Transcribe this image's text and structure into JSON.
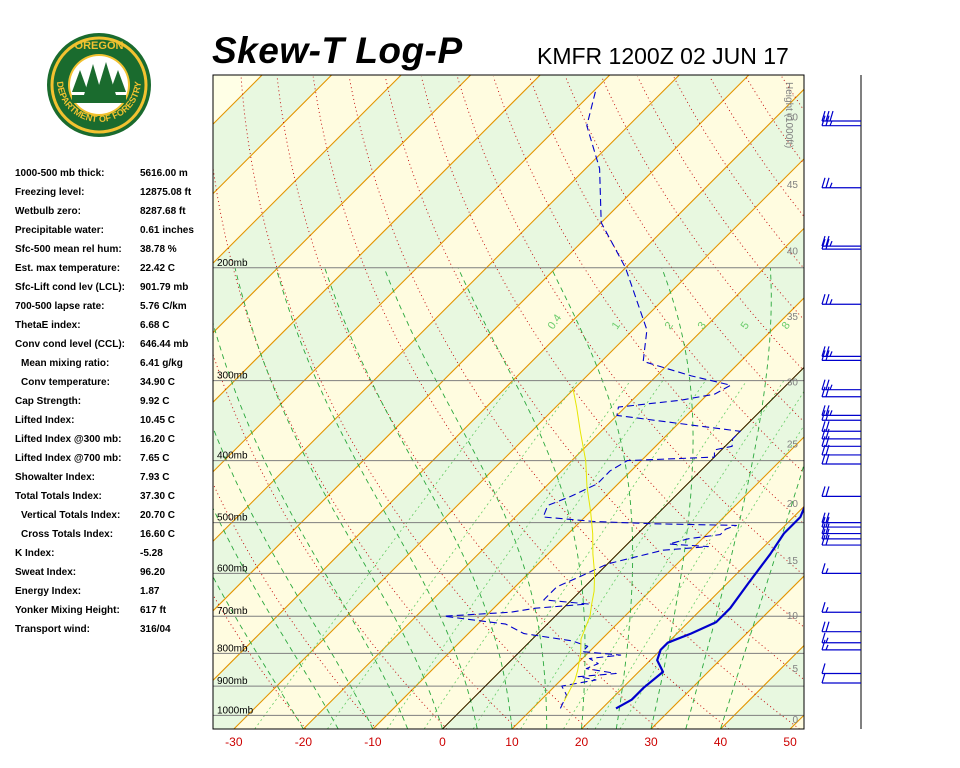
{
  "logo": {
    "top_text": "OREGON",
    "ring_text": "DEPARTMENT OF FORESTRY",
    "icon": "oregon-forestry-seal"
  },
  "header": {
    "title": "Skew-T Log-P",
    "station": "KMFR 1200Z 02 JUN 17"
  },
  "stats": [
    {
      "label": "1000-500 mb thick:",
      "value": "5616.00 m",
      "indent": false
    },
    {
      "label": "Freezing level:",
      "value": "12875.08 ft",
      "indent": false
    },
    {
      "label": "Wetbulb zero:",
      "value": "8287.68 ft",
      "indent": false
    },
    {
      "label": "Precipitable water:",
      "value": "0.61 inches",
      "indent": false
    },
    {
      "label": "Sfc-500 mean rel hum:",
      "value": "38.78 %",
      "indent": false
    },
    {
      "label": "Est. max temperature:",
      "value": "22.42 C",
      "indent": false
    },
    {
      "label": "Sfc-Lift cond lev (LCL):",
      "value": "901.79 mb",
      "indent": false
    },
    {
      "label": "700-500 lapse rate:",
      "value": "5.76 C/km",
      "indent": false
    },
    {
      "label": "ThetaE index:",
      "value": "6.68 C",
      "indent": false
    },
    {
      "label": "Conv cond level (CCL):",
      "value": "646.44 mb",
      "indent": false
    },
    {
      "label": "Mean mixing ratio:",
      "value": "6.41 g/kg",
      "indent": true
    },
    {
      "label": "Conv temperature:",
      "value": "34.90 C",
      "indent": true
    },
    {
      "label": "Cap Strength:",
      "value": "9.92 C",
      "indent": false
    },
    {
      "label": "Lifted Index:",
      "value": "10.45 C",
      "indent": false
    },
    {
      "label": "Lifted Index @300 mb:",
      "value": "16.20 C",
      "indent": false
    },
    {
      "label": "Lifted Index @700 mb:",
      "value": "7.65 C",
      "indent": false
    },
    {
      "label": "Showalter Index:",
      "value": "7.93 C",
      "indent": false
    },
    {
      "label": "Total Totals Index:",
      "value": "37.30 C",
      "indent": false
    },
    {
      "label": "Vertical Totals Index:",
      "value": "20.70 C",
      "indent": true
    },
    {
      "label": "Cross Totals Index:",
      "value": "16.60 C",
      "indent": true
    },
    {
      "label": "K Index:",
      "value": "-5.28",
      "indent": false
    },
    {
      "label": "Sweat Index:",
      "value": "96.20",
      "indent": false
    },
    {
      "label": "Energy Index:",
      "value": "1.87",
      "indent": false
    },
    {
      "label": "Yonker Mixing Height:",
      "value": "617 ft",
      "indent": false
    },
    {
      "label": "Transport wind:",
      "value": "316/04",
      "indent": false
    }
  ],
  "chart_data": {
    "type": "line",
    "x_axis": {
      "ticks": [
        -30,
        -20,
        -10,
        0,
        10,
        20,
        30,
        40,
        50
      ],
      "range": [
        -33,
        52
      ],
      "tick_color": "#cc0000"
    },
    "y_axis_pressure": {
      "scale": "log",
      "range_mb": [
        1050,
        100
      ],
      "labels": [
        {
          "p": 1000,
          "text": "1000mb"
        },
        {
          "p": 900,
          "text": "900mb"
        },
        {
          "p": 800,
          "text": "800mb"
        },
        {
          "p": 700,
          "text": "700mb"
        },
        {
          "p": 600,
          "text": "600mb"
        },
        {
          "p": 500,
          "text": "500mb"
        },
        {
          "p": 400,
          "text": "400mb"
        },
        {
          "p": 300,
          "text": "300mb"
        },
        {
          "p": 200,
          "text": "200mb"
        }
      ]
    },
    "height_axis": {
      "title": "Height (1000ft)",
      "labels": [
        {
          "p": 1013,
          "text": "0"
        },
        {
          "p": 843,
          "text": "5"
        },
        {
          "p": 697,
          "text": "10"
        },
        {
          "p": 572,
          "text": "15"
        },
        {
          "p": 466,
          "text": "20"
        },
        {
          "p": 376,
          "text": "25"
        },
        {
          "p": 301,
          "text": "30"
        },
        {
          "p": 238,
          "text": "35"
        },
        {
          "p": 188,
          "text": "40"
        },
        {
          "p": 148,
          "text": "45"
        },
        {
          "p": 116,
          "text": "50"
        }
      ]
    },
    "mixing_ratio_labels": [
      "0.4",
      "1",
      "2",
      "3",
      "5",
      "8"
    ],
    "series": [
      {
        "role": "temperature",
        "color": "#0000cc",
        "points": [
          [
            975,
            22
          ],
          [
            945,
            23
          ],
          [
            905,
            23
          ],
          [
            855,
            23.5
          ],
          [
            820,
            21
          ],
          [
            790,
            20
          ],
          [
            770,
            20
          ],
          [
            745,
            22
          ],
          [
            715,
            24
          ],
          [
            680,
            24
          ],
          [
            620,
            23
          ],
          [
            560,
            22
          ],
          [
            520,
            21
          ],
          [
            490,
            21
          ],
          [
            460,
            19.5
          ],
          [
            420,
            17.5
          ],
          [
            395,
            15.5
          ],
          [
            375,
            14
          ],
          [
            355,
            13
          ],
          [
            335,
            13
          ],
          [
            320,
            12
          ],
          [
            300,
            10
          ],
          [
            280,
            7
          ],
          [
            250,
            1
          ],
          [
            225,
            -5
          ],
          [
            200,
            -10
          ],
          [
            185,
            -15
          ],
          [
            170,
            -20
          ],
          [
            155,
            -24
          ],
          [
            140,
            -28
          ],
          [
            120,
            -34
          ],
          [
            105,
            -38
          ]
        ]
      },
      {
        "role": "dewpoint",
        "color": "#0000cc",
        "dashed": true,
        "points": [
          [
            975,
            14
          ],
          [
            930,
            13
          ],
          [
            900,
            11
          ],
          [
            880,
            15
          ],
          [
            870,
            12
          ],
          [
            860,
            17
          ],
          [
            845,
            12
          ],
          [
            830,
            13
          ],
          [
            815,
            11
          ],
          [
            805,
            15
          ],
          [
            795,
            9
          ],
          [
            780,
            9
          ],
          [
            765,
            6
          ],
          [
            745,
            -2
          ],
          [
            720,
            -6
          ],
          [
            700,
            -16
          ],
          [
            690,
            -7
          ],
          [
            680,
            -4
          ],
          [
            670,
            3
          ],
          [
            660,
            -4
          ],
          [
            630,
            -4
          ],
          [
            605,
            -2
          ],
          [
            580,
            0
          ],
          [
            552,
            6
          ],
          [
            545,
            12
          ],
          [
            540,
            6
          ],
          [
            530,
            8
          ],
          [
            522,
            12
          ],
          [
            512,
            12
          ],
          [
            505,
            13
          ],
          [
            502,
            1
          ],
          [
            498,
            -8
          ],
          [
            490,
            -16
          ],
          [
            470,
            -17
          ],
          [
            455,
            -15
          ],
          [
            435,
            -13
          ],
          [
            415,
            -13
          ],
          [
            400,
            -12
          ],
          [
            395,
            0
          ],
          [
            385,
            -1
          ],
          [
            380,
            1
          ],
          [
            370,
            0
          ],
          [
            360,
            0
          ],
          [
            348,
            -12
          ],
          [
            340,
            -20
          ],
          [
            330,
            -21
          ],
          [
            322,
            -13
          ],
          [
            315,
            -9
          ],
          [
            305,
            -8
          ],
          [
            295,
            -15
          ],
          [
            280,
            -24
          ],
          [
            250,
            -28
          ],
          [
            200,
            -40
          ],
          [
            170,
            -50
          ],
          [
            140,
            -58
          ],
          [
            120,
            -66
          ],
          [
            105,
            -70
          ]
        ]
      },
      {
        "role": "parcel",
        "color": "#e6e600",
        "points": [
          [
            950,
            13.5
          ],
          [
            902,
            12.5
          ],
          [
            880,
            12
          ],
          [
            850,
            11
          ],
          [
            800,
            9
          ],
          [
            760,
            7
          ],
          [
            730,
            6
          ],
          [
            700,
            5
          ],
          [
            670,
            3.5
          ],
          [
            640,
            2
          ],
          [
            600,
            -0.5
          ],
          [
            560,
            -3.5
          ],
          [
            520,
            -6.5
          ],
          [
            480,
            -10
          ],
          [
            440,
            -14
          ],
          [
            400,
            -18
          ],
          [
            360,
            -23
          ],
          [
            330,
            -27
          ],
          [
            310,
            -30
          ]
        ]
      }
    ],
    "wind_barbs": [
      {
        "p": 118,
        "speed": 30
      },
      {
        "p": 120,
        "speed": 25
      },
      {
        "p": 150,
        "speed": 25
      },
      {
        "p": 185,
        "speed": 25
      },
      {
        "p": 187,
        "speed": 20
      },
      {
        "p": 228,
        "speed": 25
      },
      {
        "p": 275,
        "speed": 25
      },
      {
        "p": 279,
        "speed": 20
      },
      {
        "p": 310,
        "speed": 25
      },
      {
        "p": 318,
        "speed": 20
      },
      {
        "p": 340,
        "speed": 25
      },
      {
        "p": 346,
        "speed": 20
      },
      {
        "p": 360,
        "speed": 20
      },
      {
        "p": 370,
        "speed": 20
      },
      {
        "p": 380,
        "speed": 20
      },
      {
        "p": 392,
        "speed": 20
      },
      {
        "p": 405,
        "speed": 20
      },
      {
        "p": 455,
        "speed": 20
      },
      {
        "p": 500,
        "speed": 20
      },
      {
        "p": 508,
        "speed": 20
      },
      {
        "p": 520,
        "speed": 20
      },
      {
        "p": 530,
        "speed": 20
      },
      {
        "p": 542,
        "speed": 20
      },
      {
        "p": 600,
        "speed": 15
      },
      {
        "p": 690,
        "speed": 15
      },
      {
        "p": 740,
        "speed": 20
      },
      {
        "p": 770,
        "speed": 15
      },
      {
        "p": 790,
        "speed": 15
      },
      {
        "p": 860,
        "speed": 10
      },
      {
        "p": 890,
        "speed": 10
      }
    ]
  }
}
